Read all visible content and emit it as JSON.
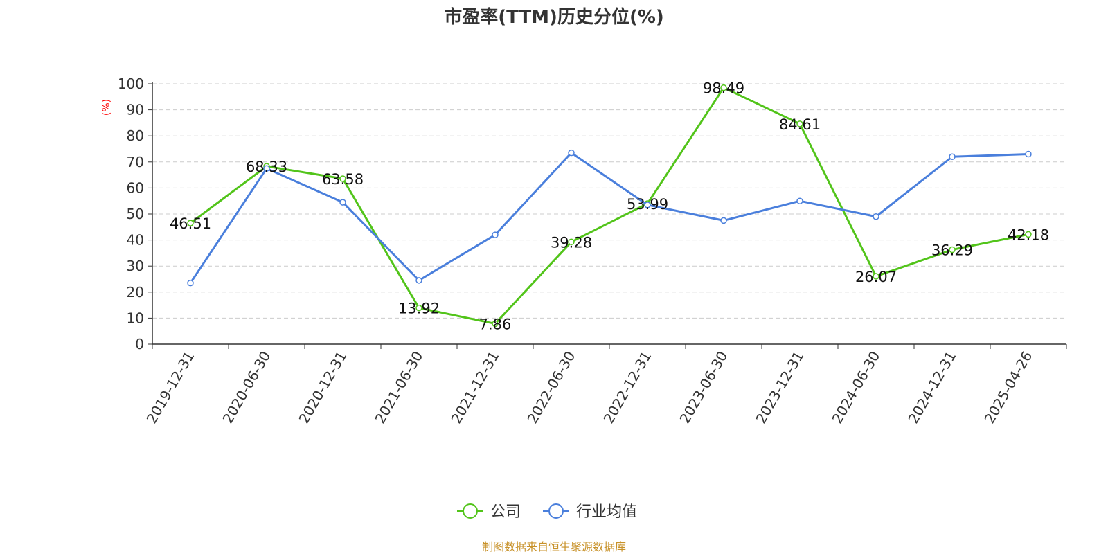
{
  "chart_data": {
    "type": "line",
    "title": "市盈率(TTM)历史分位(%)",
    "ylabel": "(%)",
    "xlabel": "",
    "ylim": [
      0,
      100
    ],
    "yticks": [
      "0",
      "10",
      "20",
      "30",
      "40",
      "50",
      "60",
      "70",
      "80",
      "90",
      "100"
    ],
    "categories": [
      "2019-12-31",
      "2020-06-30",
      "2020-12-31",
      "2021-06-30",
      "2021-12-31",
      "2022-06-30",
      "2022-12-31",
      "2023-06-30",
      "2023-12-31",
      "2024-06-30",
      "2024-12-31",
      "2025-04-26"
    ],
    "series": [
      {
        "name": "公司",
        "color": "#52c41a",
        "values": [
          46.51,
          68.33,
          63.58,
          13.92,
          7.86,
          39.28,
          53.99,
          98.49,
          84.61,
          26.07,
          36.29,
          42.18
        ],
        "labels": [
          "46.51",
          "68.33",
          "63.58",
          "13.92",
          "7.86",
          "39.28",
          "53.99",
          "98.49",
          "84.61",
          "26.07",
          "36.29",
          "42.18"
        ]
      },
      {
        "name": "行业均值",
        "color": "#4a7fdc",
        "values": [
          23.5,
          67.5,
          54.5,
          24.5,
          42.0,
          73.5,
          53.5,
          47.5,
          55.0,
          49.0,
          72.0,
          73.0
        ]
      }
    ],
    "grid": true,
    "legend_position": "bottom-center",
    "source": "制图数据来自恒生聚源数据库"
  }
}
